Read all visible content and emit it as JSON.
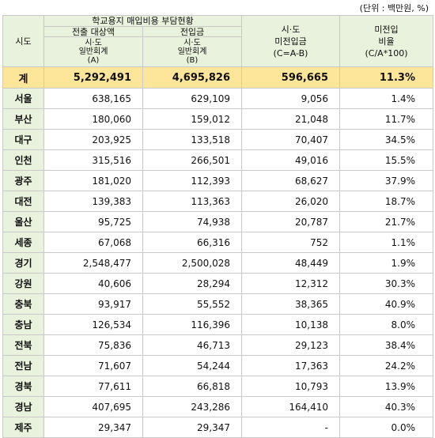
{
  "unit_note": "(단위 : 백만원, %)",
  "header": {
    "region": "시도",
    "group_title": "학교용지 매입비용  부담현황",
    "col_b_title": "전출 대상액",
    "col_b_sub1": "시·도",
    "col_b_sub2": "일반회계",
    "col_b_sub3": "(A)",
    "col_c_title": "전입금",
    "col_c_sub1": "시·도",
    "col_c_sub2": "일반회계",
    "col_c_sub3": "(B)",
    "col_d_line1": "시·도",
    "col_d_line2": "미전입금",
    "col_d_line3": "(C=A-B)",
    "col_e_line1": "미전입",
    "col_e_line2": "비율",
    "col_e_line3": "(C/A*100)"
  },
  "total": {
    "region": "계",
    "a": "5,292,491",
    "b": "4,695,826",
    "c": "596,665",
    "ratio": "11.3%"
  },
  "rows": [
    {
      "region": "서울",
      "a": "638,165",
      "b": "629,109",
      "c": "9,056",
      "ratio": "1.4%"
    },
    {
      "region": "부산",
      "a": "180,060",
      "b": "159,012",
      "c": "21,048",
      "ratio": "11.7%"
    },
    {
      "region": "대구",
      "a": "203,925",
      "b": "133,518",
      "c": "70,407",
      "ratio": "34.5%"
    },
    {
      "region": "인천",
      "a": "315,516",
      "b": "266,501",
      "c": "49,016",
      "ratio": "15.5%"
    },
    {
      "region": "광주",
      "a": "181,020",
      "b": "112,393",
      "c": "68,627",
      "ratio": "37.9%"
    },
    {
      "region": "대전",
      "a": "139,383",
      "b": "113,363",
      "c": "26,020",
      "ratio": "18.7%"
    },
    {
      "region": "울산",
      "a": "95,725",
      "b": "74,938",
      "c": "20,787",
      "ratio": "21.7%"
    },
    {
      "region": "세종",
      "a": "67,068",
      "b": "66,316",
      "c": "752",
      "ratio": "1.1%"
    },
    {
      "region": "경기",
      "a": "2,548,477",
      "b": "2,500,028",
      "c": "48,449",
      "ratio": "1.9%"
    },
    {
      "region": "강원",
      "a": "40,606",
      "b": "28,294",
      "c": "12,312",
      "ratio": "30.3%"
    },
    {
      "region": "충북",
      "a": "93,917",
      "b": "55,552",
      "c": "38,365",
      "ratio": "40.9%"
    },
    {
      "region": "충남",
      "a": "126,534",
      "b": "116,396",
      "c": "10,138",
      "ratio": "8.0%"
    },
    {
      "region": "전북",
      "a": "75,836",
      "b": "46,713",
      "c": "29,123",
      "ratio": "38.4%"
    },
    {
      "region": "전남",
      "a": "71,607",
      "b": "54,244",
      "c": "17,363",
      "ratio": "24.2%"
    },
    {
      "region": "경북",
      "a": "77,611",
      "b": "66,818",
      "c": "10,793",
      "ratio": "13.9%"
    },
    {
      "region": "경남",
      "a": "407,695",
      "b": "243,286",
      "c": "164,410",
      "ratio": "40.3%"
    },
    {
      "region": "제주",
      "a": "29,347",
      "b": "29,347",
      "c": "-",
      "ratio": "0.0%"
    }
  ],
  "colors": {
    "header_bg": "#e8f2dc",
    "total_bg": "#fde59a",
    "border": "#c9c9c9"
  }
}
